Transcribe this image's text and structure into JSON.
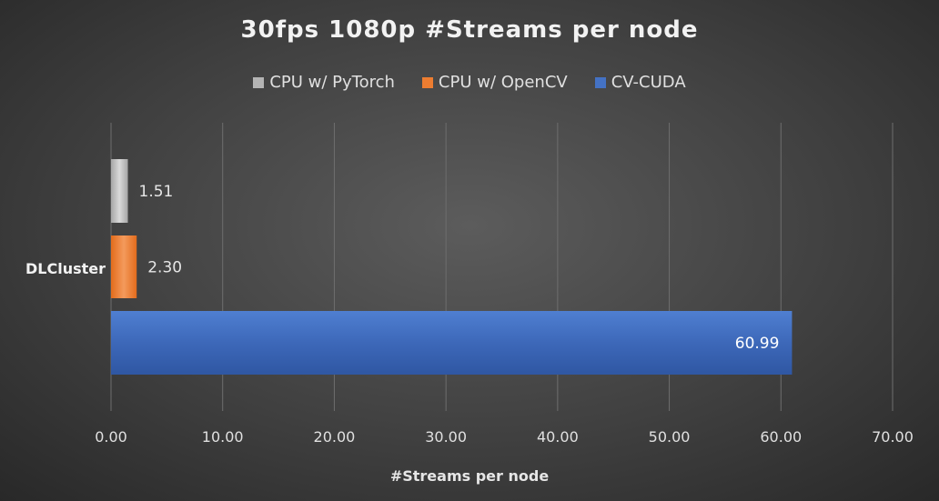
{
  "chart_data": {
    "type": "bar",
    "orientation": "horizontal",
    "title": "30fps 1080p #Streams per node",
    "xlabel": "#Streams per node",
    "ylabel": "",
    "categories": [
      "DLCluster"
    ],
    "series": [
      {
        "name": "CPU w/ PyTorch",
        "values": [
          1.51
        ],
        "color": "#b4b4b4"
      },
      {
        "name": "CPU w/ OpenCV",
        "values": [
          2.3
        ],
        "color": "#ed7d31"
      },
      {
        "name": "CV-CUDA",
        "values": [
          60.99
        ],
        "color": "#4472c4"
      }
    ],
    "data_labels": [
      "1.51",
      "2.30",
      "60.99"
    ],
    "xlim": [
      0,
      70
    ],
    "xticks": [
      "0.00",
      "10.00",
      "20.00",
      "30.00",
      "40.00",
      "50.00",
      "60.00",
      "70.00"
    ],
    "grid": "vertical",
    "legend_position": "top"
  }
}
